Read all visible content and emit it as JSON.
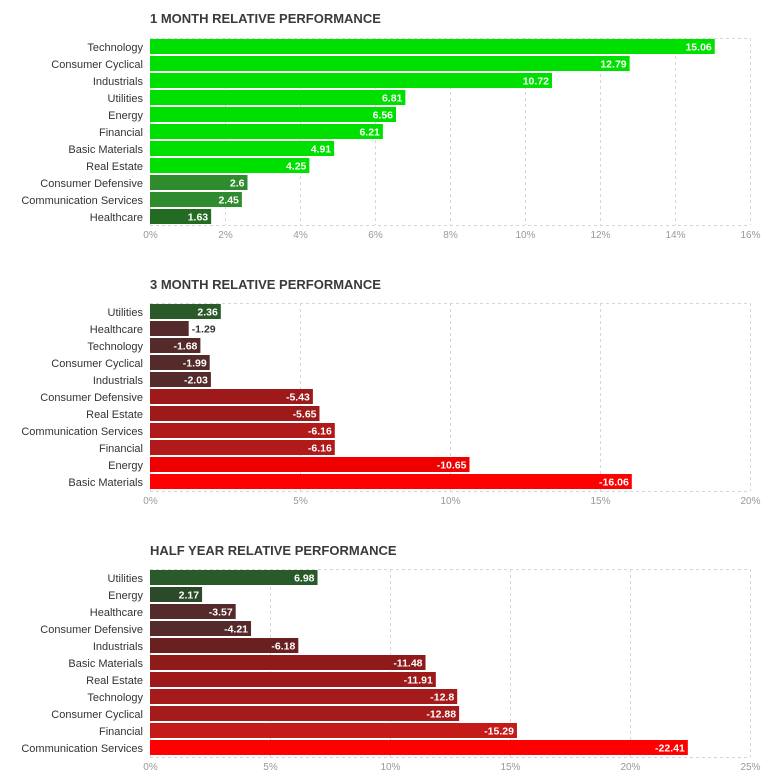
{
  "chart_data": [
    {
      "type": "bar",
      "title": "1 MONTH RELATIVE PERFORMANCE",
      "categories": [
        "Technology",
        "Consumer Cyclical",
        "Industrials",
        "Utilities",
        "Energy",
        "Financial",
        "Basic Materials",
        "Real Estate",
        "Consumer Defensive",
        "Communication Services",
        "Healthcare"
      ],
      "values": [
        15.06,
        12.79,
        10.72,
        6.81,
        6.56,
        6.21,
        4.91,
        4.25,
        2.6,
        2.45,
        1.63
      ],
      "value_labels": [
        "15.06",
        "12.79",
        "10.72",
        "6.81",
        "6.56",
        "6.21",
        "4.91",
        "4.25",
        "2.6",
        "2.45",
        "1.63"
      ],
      "ticks": [
        0,
        2,
        4,
        6,
        8,
        10,
        12,
        14,
        16
      ],
      "tick_labels": [
        "0%",
        "2%",
        "4%",
        "6%",
        "8%",
        "10%",
        "12%",
        "14%",
        "16%"
      ],
      "xlim": [
        0,
        16
      ],
      "bar_colors": [
        "#00e000",
        "#00e000",
        "#00e000",
        "#00e000",
        "#00e000",
        "#00e000",
        "#00e000",
        "#00e000",
        "#2e8b2e",
        "#2e8b2e",
        "#236b23"
      ]
    },
    {
      "type": "bar",
      "title": "3 MONTH RELATIVE PERFORMANCE",
      "categories": [
        "Utilities",
        "Healthcare",
        "Technology",
        "Consumer Cyclical",
        "Industrials",
        "Consumer Defensive",
        "Real Estate",
        "Communication Services",
        "Financial",
        "Energy",
        "Basic Materials"
      ],
      "values": [
        2.36,
        -1.29,
        -1.68,
        -1.99,
        -2.03,
        -5.43,
        -5.65,
        -6.16,
        -6.16,
        -10.65,
        -16.06
      ],
      "value_labels": [
        "2.36",
        "-1.29",
        "-1.68",
        "-1.99",
        "-2.03",
        "-5.43",
        "-5.65",
        "-6.16",
        "-6.16",
        "-10.65",
        "-16.06"
      ],
      "ticks": [
        0,
        5,
        10,
        15,
        20
      ],
      "tick_labels": [
        "0%",
        "5%",
        "10%",
        "15%",
        "20%"
      ],
      "xlim": [
        0,
        20
      ],
      "bar_colors": [
        "#2a5a2a",
        "#552a2a",
        "#552a2a",
        "#552a2a",
        "#552a2a",
        "#9e1a1a",
        "#9e1a1a",
        "#b01a1a",
        "#b01a1a",
        "#ee0000",
        "#ff0000"
      ]
    },
    {
      "type": "bar",
      "title": "HALF YEAR RELATIVE PERFORMANCE",
      "categories": [
        "Utilities",
        "Energy",
        "Healthcare",
        "Consumer Defensive",
        "Industrials",
        "Basic Materials",
        "Real Estate",
        "Technology",
        "Consumer Cyclical",
        "Financial",
        "Communication Services"
      ],
      "values": [
        6.98,
        2.17,
        -3.57,
        -4.21,
        -6.18,
        -11.48,
        -11.91,
        -12.8,
        -12.88,
        -15.29,
        -22.41
      ],
      "value_labels": [
        "6.98",
        "2.17",
        "-3.57",
        "-4.21",
        "-6.18",
        "-11.48",
        "-11.91",
        "-12.8",
        "-12.88",
        "-15.29",
        "-22.41"
      ],
      "ticks": [
        0,
        5,
        10,
        15,
        20,
        25
      ],
      "tick_labels": [
        "0%",
        "5%",
        "10%",
        "15%",
        "20%",
        "25%"
      ],
      "xlim": [
        0,
        25
      ],
      "bar_colors": [
        "#2a5a2a",
        "#2a4a2a",
        "#552a2a",
        "#552a2a",
        "#6a2020",
        "#8e1a1a",
        "#9e1a1a",
        "#a51a1a",
        "#a51a1a",
        "#c41a1a",
        "#ff0000"
      ]
    }
  ],
  "colors": {
    "title_text": "#3a3a3a",
    "label_text": "#333333",
    "tick_text": "#999999",
    "value_text_on_bright_green": "#ffffff",
    "value_text_on_dark": "#ffffff",
    "value_text_outside": "#333333"
  }
}
